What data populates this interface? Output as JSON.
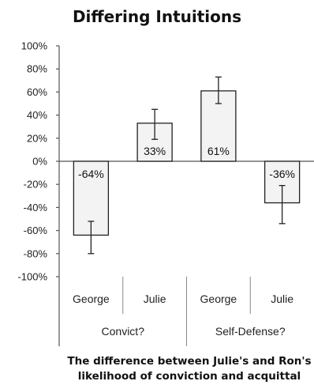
{
  "chart_data": {
    "type": "bar",
    "title": "Differing Intuitions",
    "xlabel_lines": [
      "The difference between Julie's and Ron's",
      "likelihood of conviction and acquittal"
    ],
    "ylabel": "",
    "ylim": [
      -100,
      100
    ],
    "yticks": [
      "100%",
      "80%",
      "60%",
      "40%",
      "20%",
      "0%",
      "-20%",
      "-40%",
      "-60%",
      "-80%",
      "-100%"
    ],
    "ytick_values": [
      100,
      80,
      60,
      40,
      20,
      0,
      -20,
      -40,
      -60,
      -80,
      -100
    ],
    "grid": false,
    "groups": [
      "Convict?",
      "Self-Defense?"
    ],
    "categories": [
      "George",
      "Julie",
      "George",
      "Julie"
    ],
    "values": [
      -64,
      33,
      61,
      -36
    ],
    "data_labels": [
      "-64%",
      "33%",
      "61%",
      "-36%"
    ],
    "error_low": [
      -80,
      19,
      50,
      -54
    ],
    "error_high": [
      -52,
      45,
      73,
      -21
    ]
  }
}
